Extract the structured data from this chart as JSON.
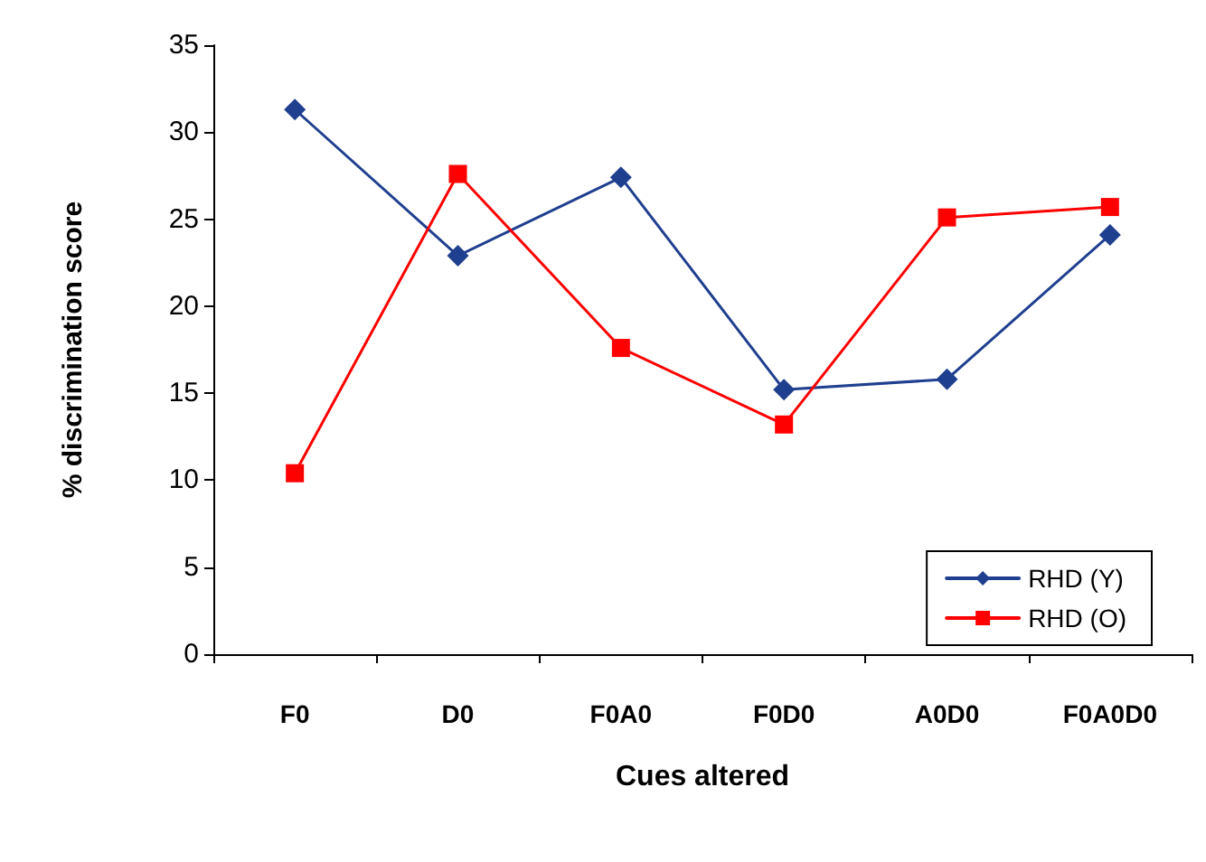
{
  "chart_data": {
    "type": "line",
    "xlabel": "Cues altered",
    "ylabel": "% discrimination score",
    "categories": [
      "F0",
      "D0",
      "F0A0",
      "F0D0",
      "A0D0",
      "F0A0D0"
    ],
    "series": [
      {
        "name": "RHD (Y)",
        "color": "#1f3f8f",
        "marker": "diamond",
        "values": [
          31.3,
          22.9,
          27.4,
          15.2,
          15.8,
          24.1
        ]
      },
      {
        "name": "RHD (O)",
        "color": "#ff0000",
        "marker": "square",
        "values": [
          10.4,
          27.6,
          17.6,
          13.2,
          25.1,
          25.7
        ]
      }
    ],
    "ylim": [
      0,
      35
    ],
    "yticks": [
      0,
      5,
      10,
      15,
      20,
      25,
      30,
      35
    ],
    "grid": false,
    "legend": "bottom right",
    "line_style": "solid"
  }
}
